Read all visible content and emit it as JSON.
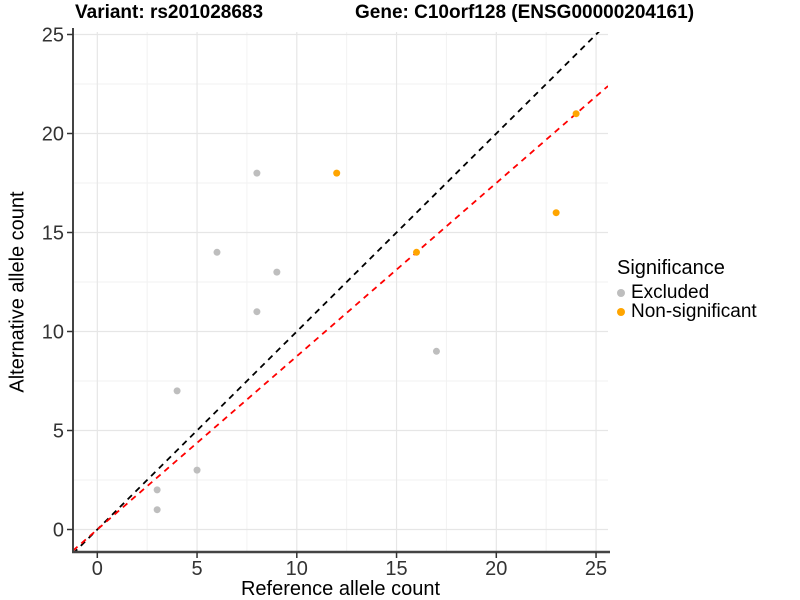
{
  "header": {
    "variant_title": "Variant: rs201028683",
    "gene_title": "Gene: C10orf128 (ENSG00000204161)"
  },
  "chart_data": {
    "type": "scatter",
    "xlabel": "Reference allele count",
    "ylabel": "Alternative allele count",
    "x_ticks": [
      0,
      5,
      10,
      15,
      20,
      25
    ],
    "y_ticks": [
      0,
      5,
      10,
      15,
      20,
      25
    ],
    "xlim": [
      -1.25,
      25.6
    ],
    "ylim": [
      -1.25,
      25.1
    ],
    "grid": "major+minor",
    "series": [
      {
        "name": "Excluded",
        "color": "#BEBEBE",
        "points": [
          [
            3,
            1
          ],
          [
            3,
            2
          ],
          [
            4,
            7
          ],
          [
            5,
            3
          ],
          [
            6,
            14
          ],
          [
            8,
            11
          ],
          [
            8,
            18
          ],
          [
            9,
            13
          ],
          [
            17,
            9
          ]
        ]
      },
      {
        "name": "Non-significant",
        "color": "#FFA500",
        "points": [
          [
            12,
            18
          ],
          [
            16,
            14
          ],
          [
            23,
            16
          ],
          [
            24,
            21
          ]
        ]
      }
    ],
    "lines": [
      {
        "name": "identity-line",
        "slope": 1,
        "intercept": 0,
        "color": "#000000",
        "style": "dashed"
      },
      {
        "name": "ratio-line",
        "slope": 0.875,
        "intercept": 0,
        "color": "#FF0000",
        "style": "dashed"
      }
    ],
    "legend": {
      "title": "Significance",
      "items": [
        {
          "label": "Excluded",
          "color": "#BEBEBE"
        },
        {
          "label": "Non-significant",
          "color": "#FFA500"
        }
      ]
    },
    "colors": {
      "grid_major": "#E6E6E6",
      "grid_minor": "#F2F2F2",
      "axis_line": "#444444",
      "tick_label": "#333333"
    }
  }
}
